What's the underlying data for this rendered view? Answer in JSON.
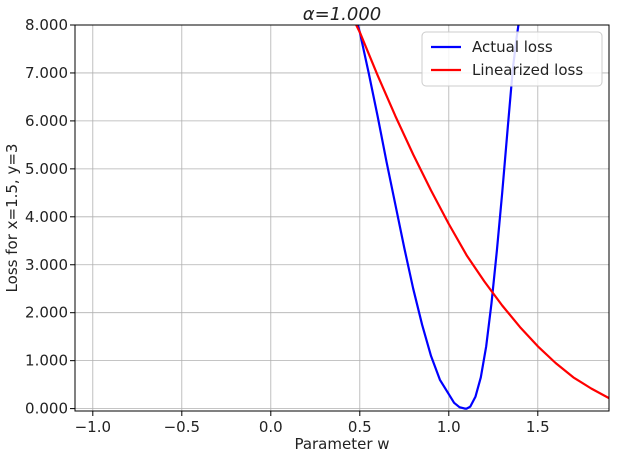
{
  "chart_data": {
    "type": "line",
    "title": "α=1.000",
    "xlabel": "Parameter w",
    "ylabel": "Loss for x=1.5, y=3",
    "xlim": [
      -1.1,
      1.9
    ],
    "ylim": [
      -0.05,
      8.0
    ],
    "xticks": [
      -1.0,
      -0.5,
      0.0,
      0.5,
      1.0,
      1.5
    ],
    "xtick_labels": [
      "−1.0",
      "−0.5",
      "0.0",
      "0.5",
      "1.0",
      "1.5"
    ],
    "yticks": [
      0,
      1,
      2,
      3,
      4,
      5,
      6,
      7,
      8
    ],
    "ytick_labels": [
      "0.000",
      "1.000",
      "2.000",
      "3.000",
      "4.000",
      "5.000",
      "6.000",
      "7.000",
      "8.000"
    ],
    "grid": true,
    "legend_position": "top-right",
    "series": [
      {
        "name": "Actual loss",
        "color": "#0000ff",
        "x": [
          0.45,
          0.5,
          0.55,
          0.6,
          0.65,
          0.7,
          0.75,
          0.8,
          0.85,
          0.9,
          0.95,
          1.0,
          1.03,
          1.06,
          1.09,
          1.1,
          1.12,
          1.15,
          1.18,
          1.21,
          1.24,
          1.27,
          1.3,
          1.33,
          1.36,
          1.38,
          1.395
        ],
        "y": [
          8.5,
          7.85,
          7.0,
          6.1,
          5.15,
          4.25,
          3.35,
          2.5,
          1.75,
          1.1,
          0.6,
          0.3,
          0.12,
          0.03,
          0.0,
          0.0,
          0.04,
          0.25,
          0.65,
          1.3,
          2.2,
          3.3,
          4.5,
          5.8,
          7.1,
          7.7,
          8.1
        ]
      },
      {
        "name": "Linearized loss",
        "color": "#ff0000",
        "x": [
          0.48,
          0.5,
          0.6,
          0.7,
          0.8,
          0.9,
          1.0,
          1.1,
          1.2,
          1.3,
          1.4,
          1.5,
          1.6,
          1.7,
          1.8,
          1.9
        ],
        "y": [
          8.0,
          7.85,
          6.95,
          6.1,
          5.3,
          4.55,
          3.85,
          3.2,
          2.65,
          2.15,
          1.7,
          1.3,
          0.95,
          0.65,
          0.42,
          0.22
        ]
      }
    ]
  }
}
